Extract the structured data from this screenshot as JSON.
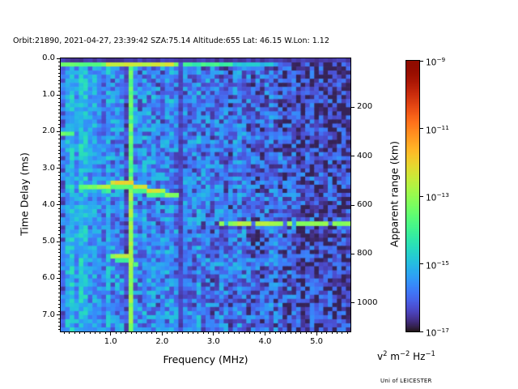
{
  "title": "Orbit:21890, 2021-04-27, 23:39:42 SZA:75.14 Altitude:655 Lat: 46.15 W.Lon: 1.12",
  "branding": "Uni of LEICESTER",
  "axes": {
    "x": {
      "label": "Frequency (MHz)",
      "min": 0.03,
      "max": 5.66,
      "major_ticks": [
        1,
        2,
        3,
        4,
        5
      ],
      "tick_labels": [
        "1.0",
        "2.0",
        "3.0",
        "4.0",
        "5.0"
      ],
      "minor_step": 0.1
    },
    "y_left": {
      "label": "Time Delay (ms)",
      "min": 0,
      "max": 7.45,
      "major_ticks": [
        0,
        1,
        2,
        3,
        4,
        5,
        6,
        7
      ],
      "tick_labels": [
        "0.0",
        "1.0",
        "2.0",
        "3.0",
        "4.0",
        "5.0",
        "6.0",
        "7.0"
      ],
      "minor_step": 0.1
    },
    "y_right": {
      "label": "Apparent range (km)",
      "ticks": [
        200,
        400,
        600,
        800,
        1000
      ],
      "tick_labels": [
        "200",
        "400",
        "600",
        "800",
        "1000"
      ],
      "km_per_ms": 149.9
    }
  },
  "colorbar": {
    "colormap": "turbo",
    "ticks": [
      {
        "base": "10",
        "exp": "−9"
      },
      {
        "base": "10",
        "exp": "−11"
      },
      {
        "base": "10",
        "exp": "−13"
      },
      {
        "base": "10",
        "exp": "−15"
      },
      {
        "base": "10",
        "exp": "−17"
      }
    ],
    "unit_parts": [
      [
        "v",
        "2"
      ],
      [
        " m",
        "−2"
      ],
      [
        " Hz",
        "−1"
      ]
    ]
  },
  "chart_data": {
    "type": "heatmap",
    "title": "Orbit:21890, 2021-04-27, 23:39:42 SZA:75.14 Altitude:655 Lat: 46.15 W.Lon: 1.12",
    "xlabel": "Frequency (MHz)",
    "ylabel": "Time Delay (ms)",
    "y2label": "Apparent range (km)",
    "zlabel": "v^2 m^-2 Hz^-1",
    "x_range_mhz": [
      0.03,
      5.66
    ],
    "y_range_ms": [
      0,
      7.45
    ],
    "z_range": [
      "1e-17",
      "1e-9"
    ],
    "colormap": "turbo",
    "grid_cells": [
      64,
      67
    ],
    "noise": {
      "base": 0.165,
      "spread": 0.21,
      "left_region_mhz": 1.0,
      "left_base": 0.19,
      "col_coherence": 0.16,
      "falloff_start_mhz": 2.45,
      "falloff_per_mhz": 0.027,
      "corner_dark": 0.025,
      "bright_stripes": [
        [
          0.1,
          0.24,
          0.1
        ],
        [
          0.27,
          0.38,
          0.05
        ],
        [
          0.46,
          0.56,
          0.03
        ],
        [
          0.6,
          0.68,
          0.02
        ]
      ]
    },
    "features": {
      "top_dark_row_ms": 0.12,
      "top_line": {
        "delay_ms": 0.18,
        "segments": [
          [
            0.03,
            0.95,
            0.37
          ],
          [
            0.95,
            2.2,
            0.52
          ],
          [
            2.2,
            2.31,
            0.4
          ],
          [
            2.44,
            3.35,
            0.33
          ],
          [
            3.35,
            4.25,
            0.25
          ]
        ]
      },
      "absorption_band": {
        "f0": 2.31,
        "f1": 2.44,
        "level": 0.045
      },
      "dark_column": {
        "f0": 1.27,
        "f1": 1.335,
        "mult": 0.5
      },
      "interference_line": {
        "f0": 1.345,
        "f1": 1.395,
        "level": 0.38,
        "below_ms": 3.2,
        "extra": 0.07
      },
      "left_dash": {
        "delay_ms": 2.03,
        "f0": 0.03,
        "f1": 0.3,
        "level": 0.4
      }
    },
    "traces": [
      {
        "name": "ionospheric-echo",
        "points": [
          [
            0.4,
            3.55,
            0.4
          ],
          [
            0.55,
            3.52,
            0.42
          ],
          [
            0.7,
            3.5,
            0.44
          ],
          [
            0.85,
            3.47,
            0.5
          ],
          [
            1.0,
            3.44,
            0.57
          ],
          [
            1.15,
            3.42,
            0.6
          ],
          [
            1.32,
            3.42,
            0.6
          ],
          [
            1.45,
            3.45,
            0.57
          ],
          [
            1.58,
            3.52,
            0.55
          ],
          [
            1.72,
            3.58,
            0.57
          ],
          [
            1.85,
            3.62,
            0.57
          ],
          [
            2.0,
            3.66,
            0.52
          ],
          [
            2.15,
            3.69,
            0.48
          ],
          [
            2.3,
            3.7,
            0.45
          ]
        ]
      },
      {
        "name": "surface-echo",
        "delay_ms": 4.5,
        "f0": 3.12,
        "f1": 5.66,
        "intensity": 0.46,
        "bright_f": [
          3.45,
          4.2
        ],
        "bright_intensity": 0.52,
        "gap_fraction": 0.16
      },
      {
        "name": "low-frequency-cusp",
        "points": [
          [
            1.02,
            5.45,
            0.46
          ],
          [
            1.15,
            5.43,
            0.52
          ],
          [
            1.28,
            5.43,
            0.54
          ],
          [
            1.38,
            5.46,
            0.5
          ],
          [
            1.45,
            5.56,
            0.42
          ],
          [
            1.5,
            5.72,
            0.38
          ],
          [
            1.54,
            5.88,
            0.34
          ]
        ]
      }
    ]
  }
}
